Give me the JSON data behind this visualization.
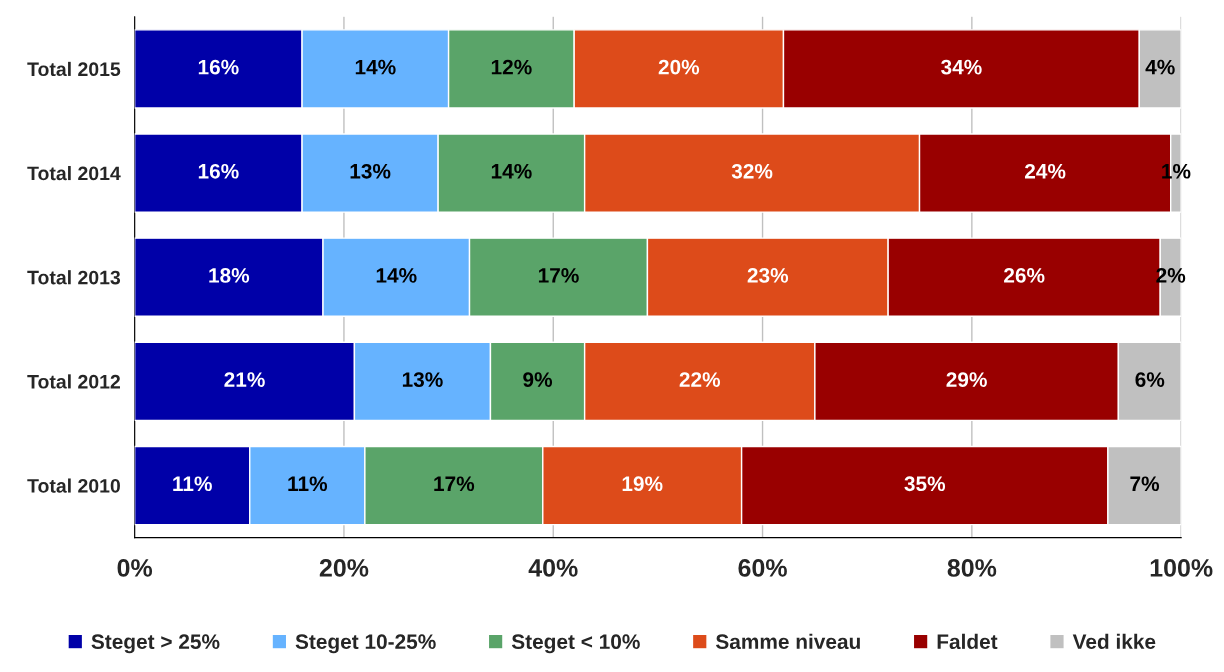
{
  "chart_data": {
    "type": "bar",
    "orientation": "horizontal",
    "stacked": true,
    "categories": [
      "Total 2015",
      "Total 2014",
      "Total 2013",
      "Total 2012",
      "Total 2010"
    ],
    "series": [
      {
        "name": "Steget > 25%",
        "color": "#0000a8",
        "values": [
          16,
          16,
          18,
          21,
          11
        ],
        "value_labels": [
          "16%",
          "16%",
          "18%",
          "21%",
          "11%"
        ]
      },
      {
        "name": "Steget 10-25%",
        "color": "#66b3ff",
        "values": [
          14,
          13,
          14,
          13,
          11
        ],
        "value_labels": [
          "14%",
          "13%",
          "14%",
          "13%",
          "11%"
        ]
      },
      {
        "name": "Steget < 10%",
        "color": "#5aa469",
        "values": [
          12,
          14,
          17,
          9,
          17
        ],
        "value_labels": [
          "12%",
          "14%",
          "17%",
          "9%",
          "17%"
        ]
      },
      {
        "name": "Samme niveau",
        "color": "#dd4b1a",
        "values": [
          20,
          32,
          23,
          22,
          19
        ],
        "value_labels": [
          "20%",
          "32%",
          "23%",
          "22%",
          "19%"
        ]
      },
      {
        "name": "Faldet",
        "color": "#990000",
        "values": [
          34,
          24,
          26,
          29,
          35
        ],
        "value_labels": [
          "34%",
          "24%",
          "26%",
          "29%",
          "35%"
        ]
      },
      {
        "name": "Ved ikke",
        "color": "#c0c0c0",
        "values": [
          4,
          1,
          2,
          6,
          7
        ],
        "value_labels": [
          "4%",
          "1%",
          "2%",
          "6%",
          "7%"
        ]
      }
    ],
    "xlim": [
      0,
      100
    ],
    "xticks": [
      {
        "value": 0,
        "label": "0%"
      },
      {
        "value": 20,
        "label": "20%"
      },
      {
        "value": 40,
        "label": "40%"
      },
      {
        "value": 60,
        "label": "60%"
      },
      {
        "value": 80,
        "label": "80%"
      },
      {
        "value": 100,
        "label": "100%"
      }
    ],
    "grid": "x",
    "legend": "bottom"
  }
}
